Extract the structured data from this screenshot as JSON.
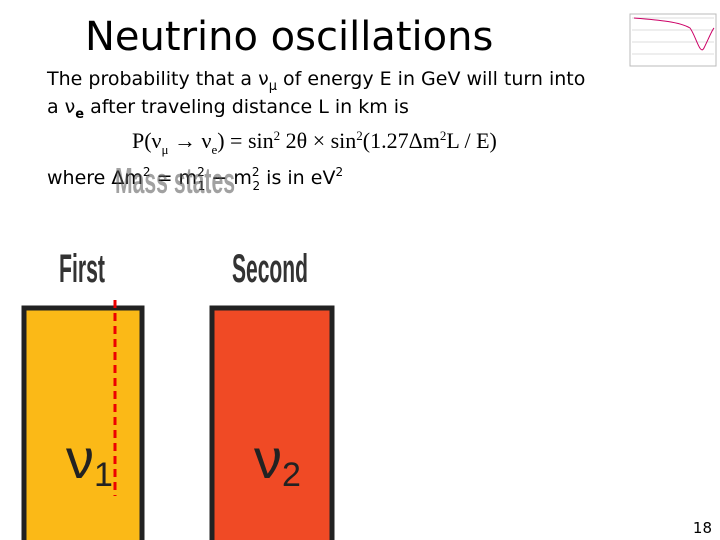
{
  "slide": {
    "title": "Neutrino oscillations",
    "intro": {
      "line1": [
        "The probability that a ν",
        "μ",
        " of energy E in GeV will turn into"
      ],
      "line2": [
        "a ν",
        "e",
        " after traveling distance L in km is"
      ]
    },
    "formula": [
      "P(ν",
      "μ",
      " → ν",
      "e",
      ") = sin",
      "2",
      " 2θ × sin",
      "2",
      "(1.27Δm",
      "2",
      "L / E)"
    ],
    "where": [
      "where  Δm",
      "2",
      " = m",
      "2",
      "1",
      " − m",
      "2",
      "2",
      "  is in eV",
      "2"
    ],
    "overlay_title": "Mass states",
    "states": [
      {
        "heading": "First",
        "symbol": "ν",
        "index": "1"
      },
      {
        "heading": "Second",
        "symbol": "ν",
        "index": "2"
      }
    ],
    "page_number": "18"
  }
}
